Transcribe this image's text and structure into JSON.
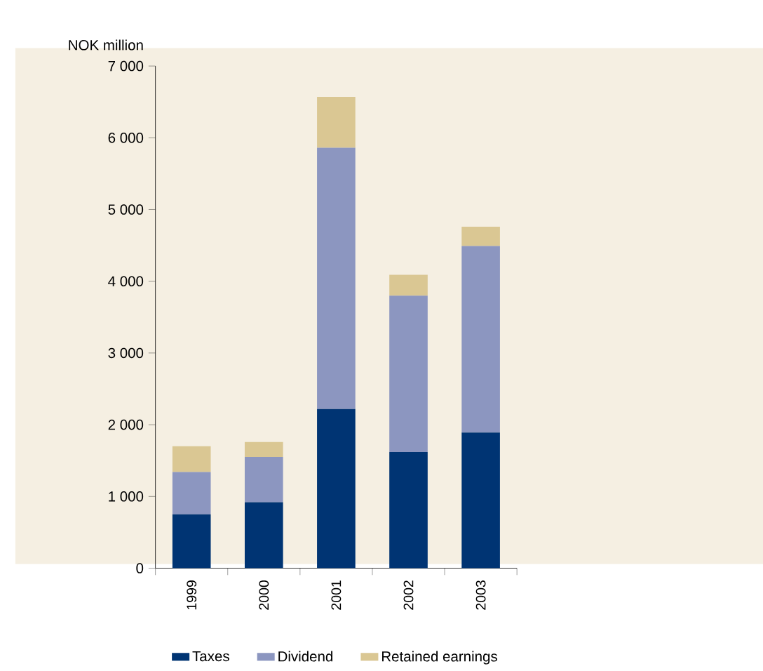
{
  "chart_data": {
    "type": "bar",
    "stacked": true,
    "ylabel": "NOK million",
    "categories": [
      "1999",
      "2000",
      "2001",
      "2002",
      "2003"
    ],
    "series": [
      {
        "name": "Taxes",
        "color": "#003473",
        "values": [
          750,
          920,
          2220,
          1620,
          1890
        ]
      },
      {
        "name": "Dividend",
        "color": "#8c96c0",
        "values": [
          590,
          630,
          3640,
          2180,
          2600
        ]
      },
      {
        "name": "Retained earnings",
        "color": "#dac793",
        "values": [
          360,
          210,
          710,
          290,
          270
        ]
      }
    ],
    "ylim": [
      0,
      7000
    ],
    "yticks": [
      0,
      {
        "value": 1000,
        "label": "1 000"
      },
      {
        "value": 2000,
        "label": "2 000"
      },
      {
        "value": 3000,
        "label": "3 000"
      },
      {
        "value": 4000,
        "label": "4 000"
      },
      {
        "value": 5000,
        "label": "5 000"
      },
      {
        "value": 6000,
        "label": "6 000"
      },
      {
        "value": 7000,
        "label": "7 000"
      }
    ],
    "legend": "bottom",
    "grid": false
  }
}
